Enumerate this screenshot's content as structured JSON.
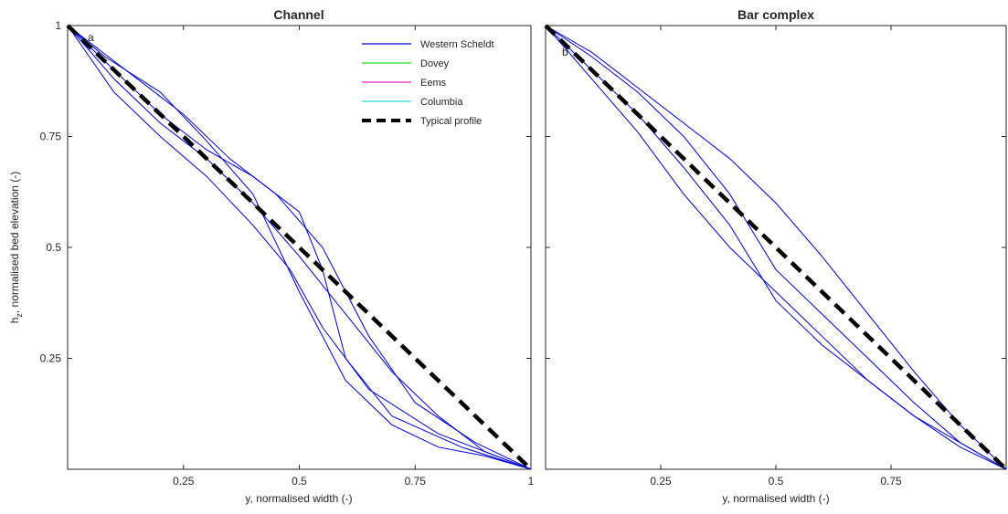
{
  "colors": {
    "western_scheldt": "#0000cc",
    "dovey": "#22dd22",
    "eems": "#ee22cc",
    "columbia": "#22dddd",
    "typical": "#000000"
  },
  "chart_data": [
    {
      "type": "line",
      "title": "Channel",
      "panel_letter": "a",
      "xlabel": "y, normalised width (-)",
      "ylabel": "h",
      "ylabel_sub": "z",
      "ylabel_rest": ", normalised bed elevation (-)",
      "xlim": [
        0,
        1
      ],
      "ylim": [
        0,
        1
      ],
      "xticks": [
        {
          "v": 0.25,
          "label": "0.25"
        },
        {
          "v": 0.5,
          "label": "0.5"
        },
        {
          "v": 0.75,
          "label": "0.75"
        },
        {
          "v": 1,
          "label": "1"
        }
      ],
      "yticks": [
        {
          "v": 0.25,
          "label": "0.25"
        },
        {
          "v": 0.5,
          "label": "0.5"
        },
        {
          "v": 0.75,
          "label": "0.75"
        },
        {
          "v": 1,
          "label": "1"
        }
      ],
      "legend": {
        "location": "top-right",
        "entries": [
          {
            "label": "Western Scheldt",
            "color": "#0000cc",
            "dashed": false
          },
          {
            "label": "Dovey",
            "color": "#22dd22",
            "dashed": false
          },
          {
            "label": "Eems",
            "color": "#ee22cc",
            "dashed": false
          },
          {
            "label": "Columbia",
            "color": "#22dddd",
            "dashed": false
          },
          {
            "label": "Typical profile",
            "color": "#000000",
            "dashed": true
          }
        ]
      },
      "series": [
        {
          "group": "Western Scheldt",
          "color": "#0000cc",
          "x": [
            0,
            0.08,
            0.2,
            0.3,
            0.4,
            0.5,
            0.6,
            0.7,
            0.8,
            0.9,
            1
          ],
          "y": [
            1,
            0.93,
            0.85,
            0.74,
            0.62,
            0.4,
            0.2,
            0.1,
            0.05,
            0.03,
            0
          ]
        },
        {
          "group": "Western Scheldt",
          "color": "#0000cc",
          "x": [
            0,
            0.1,
            0.2,
            0.3,
            0.4,
            0.5,
            0.55,
            0.6,
            0.7,
            0.85,
            1
          ],
          "y": [
            1,
            0.9,
            0.8,
            0.72,
            0.66,
            0.58,
            0.45,
            0.25,
            0.12,
            0.05,
            0
          ]
        },
        {
          "group": "Western Scheldt",
          "color": "#0000cc",
          "x": [
            0,
            0.1,
            0.2,
            0.3,
            0.4,
            0.5,
            0.6,
            0.7,
            0.8,
            0.9,
            1
          ],
          "y": [
            1,
            0.88,
            0.78,
            0.7,
            0.6,
            0.48,
            0.35,
            0.22,
            0.12,
            0.04,
            0
          ]
        },
        {
          "group": "Western Scheldt",
          "color": "#0000cc",
          "x": [
            0,
            0.05,
            0.15,
            0.25,
            0.35,
            0.45,
            0.55,
            0.65,
            0.75,
            0.88,
            1
          ],
          "y": [
            1,
            0.96,
            0.88,
            0.8,
            0.7,
            0.62,
            0.5,
            0.3,
            0.15,
            0.06,
            0
          ]
        },
        {
          "group": "Western Scheldt",
          "color": "#0000cc",
          "x": [
            0,
            0.1,
            0.2,
            0.3,
            0.4,
            0.48,
            0.55,
            0.65,
            0.8,
            1
          ],
          "y": [
            1,
            0.85,
            0.75,
            0.66,
            0.55,
            0.45,
            0.32,
            0.18,
            0.08,
            0
          ]
        }
      ]
    },
    {
      "type": "line",
      "title": "Bar complex",
      "panel_letter": "b",
      "xlabel": "y, normalised width (-)",
      "xlim": [
        0,
        1
      ],
      "ylim": [
        0,
        1
      ],
      "xticks": [
        {
          "v": 0.25,
          "label": "0.25"
        },
        {
          "v": 0.5,
          "label": "0.5"
        },
        {
          "v": 0.75,
          "label": "0.75"
        }
      ],
      "yticks": [],
      "series": [
        {
          "group": "Western Scheldt",
          "color": "#0000cc",
          "x": [
            0,
            0.1,
            0.2,
            0.3,
            0.4,
            0.5,
            0.6,
            0.7,
            0.8,
            0.9,
            1
          ],
          "y": [
            1,
            0.9,
            0.8,
            0.68,
            0.55,
            0.38,
            0.28,
            0.2,
            0.12,
            0.05,
            0
          ]
        },
        {
          "group": "Western Scheldt",
          "color": "#0000cc",
          "x": [
            0,
            0.1,
            0.2,
            0.3,
            0.4,
            0.5,
            0.6,
            0.7,
            0.8,
            0.9,
            1
          ],
          "y": [
            1,
            0.93,
            0.85,
            0.75,
            0.62,
            0.45,
            0.35,
            0.25,
            0.15,
            0.06,
            0
          ]
        },
        {
          "group": "Western Scheldt",
          "color": "#0000cc",
          "x": [
            0,
            0.1,
            0.2,
            0.3,
            0.4,
            0.5,
            0.6,
            0.7,
            0.8,
            0.9,
            1
          ],
          "y": [
            1,
            0.94,
            0.86,
            0.78,
            0.7,
            0.6,
            0.48,
            0.35,
            0.22,
            0.1,
            0
          ]
        },
        {
          "group": "Western Scheldt",
          "color": "#0000cc",
          "x": [
            0,
            0.1,
            0.2,
            0.3,
            0.4,
            0.5,
            0.6,
            0.7,
            0.8,
            0.9,
            1
          ],
          "y": [
            1,
            0.88,
            0.76,
            0.62,
            0.5,
            0.4,
            0.3,
            0.2,
            0.12,
            0.06,
            0
          ]
        }
      ]
    }
  ]
}
